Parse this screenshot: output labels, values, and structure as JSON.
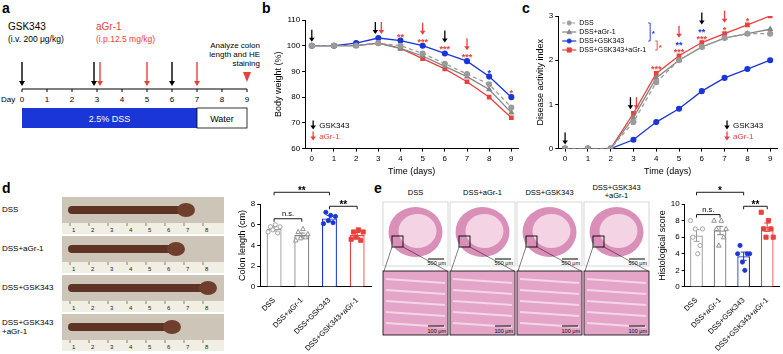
{
  "figure": {
    "panel_labels": [
      "a",
      "b",
      "c",
      "d",
      "e"
    ],
    "schedule": {
      "axis_label": "Day",
      "days": [
        0,
        1,
        2,
        3,
        4,
        5,
        6,
        7,
        8,
        9
      ],
      "treatments": [
        {
          "name": "GSK343",
          "dose": "(i.v. 200 μg/kg)",
          "color": "#000000",
          "days": [
            0,
            3,
            6
          ]
        },
        {
          "name": "aGr-1",
          "dose": "(i.p.12.5 mg/kg)",
          "color": "#e8413c",
          "days": [
            3,
            5,
            7
          ]
        }
      ],
      "endpoint": {
        "text": "Analyze colon length and HE staining",
        "day": 9,
        "color": "#e8413c"
      },
      "phases": [
        {
          "label": "2.5% DSS",
          "start": 0,
          "end": 7,
          "color": "#1a36d6"
        },
        {
          "label": "Water",
          "start": 7,
          "end": 9,
          "color": "#ffffff"
        }
      ]
    },
    "colon_photos": {
      "rows": [
        "DSS",
        "DSS+aGr-1",
        "DSS+GSK343",
        "DSS+GSK343+aGr-1"
      ],
      "ruler": [
        1,
        2,
        3,
        4,
        5,
        6,
        7,
        8
      ]
    },
    "he_photos": {
      "columns": [
        "DSS",
        "DSS+aGr-1",
        "DSS+GSK343",
        "DSS+GSK343+aGr-1"
      ],
      "scale_bars": [
        "500 μm",
        "100 μm"
      ]
    }
  },
  "chart_data": [
    {
      "type": "line",
      "x_label": "Time (days)",
      "y_label": "Body weight (%)",
      "x": [
        0,
        1,
        2,
        3,
        4,
        5,
        6,
        7,
        8,
        9
      ],
      "xlim": [
        -0.3,
        9.3
      ],
      "xticks": [
        0,
        1,
        2,
        3,
        4,
        5,
        6,
        7,
        8,
        9
      ],
      "ylim": [
        60,
        110
      ],
      "yticks": [
        60,
        70,
        80,
        90,
        100,
        110
      ],
      "grid": false,
      "series": [
        {
          "name": "DSS",
          "color": "#9b9b9b",
          "marker": "circle",
          "line_style": "dashed",
          "values": [
            100,
            100,
            100,
            101,
            100,
            97,
            93,
            89,
            85,
            76
          ]
        },
        {
          "name": "DSS+aGr-1",
          "color": "#858585",
          "marker": "triangle",
          "line_style": "solid",
          "values": [
            100,
            100,
            100,
            101,
            99,
            96,
            92,
            88,
            83,
            74
          ]
        },
        {
          "name": "DSS+GSK343",
          "color": "#1a36d6",
          "marker": "circle",
          "line_style": "solid",
          "values": [
            100,
            100,
            101,
            103,
            102,
            100,
            97,
            94,
            88,
            80
          ]
        },
        {
          "name": "DSS+GSK343+aGr-1",
          "color": "#e8413c",
          "marker": "square",
          "line_style": "solid",
          "values": [
            100,
            100,
            100,
            101,
            99,
            95,
            91,
            86,
            80,
            72
          ]
        }
      ],
      "injections": [
        {
          "name": "GSK343",
          "color": "#000000",
          "x": [
            0,
            3,
            6
          ]
        },
        {
          "name": "aGr-1",
          "color": "#e8413c",
          "x": [
            3,
            5,
            7
          ]
        }
      ],
      "annotations": [
        {
          "x": 4,
          "text": "**",
          "color": "#e8413c"
        },
        {
          "x": 5,
          "text": "***",
          "color": "#e8413c"
        },
        {
          "x": 6,
          "text": "***",
          "color": "#e8413c"
        },
        {
          "x": 7,
          "text": "***",
          "color": "#e8413c"
        },
        {
          "x": 8,
          "text": "*",
          "color": "#1a36d6"
        },
        {
          "x": 9,
          "text": "*",
          "color": "#e8413c"
        }
      ]
    },
    {
      "type": "line",
      "x_label": "Time (days)",
      "y_label": "Disease activity index",
      "x": [
        0,
        1,
        2,
        3,
        4,
        5,
        6,
        7,
        8,
        9
      ],
      "xlim": [
        -0.3,
        9.3
      ],
      "xticks": [
        0,
        1,
        2,
        3,
        4,
        5,
        6,
        7,
        8,
        9
      ],
      "ylim": [
        0,
        3
      ],
      "yticks": [
        0,
        1,
        2,
        3
      ],
      "grid": false,
      "legend": "top left",
      "series": [
        {
          "name": "DSS",
          "color": "#9b9b9b",
          "marker": "circle",
          "line_style": "dashed",
          "values": [
            0,
            0,
            0,
            0.6,
            1.5,
            2.0,
            2.3,
            2.5,
            2.6,
            2.6
          ]
        },
        {
          "name": "DSS+aGr-1",
          "color": "#858585",
          "marker": "triangle",
          "line_style": "solid",
          "values": [
            0,
            0,
            0,
            0.7,
            1.6,
            2.0,
            2.3,
            2.5,
            2.6,
            2.7
          ]
        },
        {
          "name": "DSS+GSK343",
          "color": "#1a36d6",
          "marker": "circle",
          "line_style": "solid",
          "values": [
            0,
            0,
            0,
            0.2,
            0.6,
            0.9,
            1.3,
            1.6,
            1.8,
            2.0
          ]
        },
        {
          "name": "DSS+GSK343+aGr-1",
          "color": "#e8413c",
          "marker": "square",
          "line_style": "solid",
          "values": [
            0,
            0,
            0,
            0.8,
            1.7,
            2.1,
            2.4,
            2.6,
            2.8,
            3.0
          ]
        }
      ],
      "comparisons": [
        {
          "groups": [
            "DSS",
            "DSS+GSK343"
          ],
          "text": "*",
          "color": "#1a36d6"
        },
        {
          "groups": [
            "DSS+GSK343",
            "DSS+GSK343+aGr-1"
          ],
          "text": "*",
          "color": "#e8413c"
        }
      ],
      "injections": [
        {
          "name": "GSK343",
          "color": "#000000",
          "x": [
            0,
            3,
            6
          ]
        },
        {
          "name": "aGr-1",
          "color": "#e8413c",
          "x": [
            3,
            5,
            7
          ]
        }
      ],
      "annotations": [
        {
          "x": 4,
          "text": "***",
          "color": "#e8413c"
        },
        {
          "x": 5,
          "text": "***",
          "color": "#e8413c"
        },
        {
          "x": 5,
          "text": "**",
          "color": "#1a36d6"
        },
        {
          "x": 6,
          "text": "***",
          "color": "#e8413c"
        },
        {
          "x": 6,
          "text": "**",
          "color": "#1a36d6"
        },
        {
          "x": 7,
          "text": "*",
          "color": "#e8413c"
        },
        {
          "x": 8,
          "text": "*",
          "color": "#e8413c"
        }
      ]
    },
    {
      "type": "bar",
      "y_label": "Colon length (cm)",
      "categories": [
        "DSS",
        "DSS+aGr-1",
        "DSS+GSK343",
        "DSS+GSK343+aGr-1"
      ],
      "values": [
        5.6,
        5.0,
        6.6,
        5.0
      ],
      "errors": [
        0.2,
        0.2,
        0.3,
        0.25
      ],
      "points": [
        [
          5.3,
          5.8,
          5.5,
          6.0,
          5.2,
          5.8
        ],
        [
          4.5,
          5.3,
          4.7,
          5.6,
          4.8,
          5.1
        ],
        [
          6.1,
          7.2,
          6.4,
          6.9,
          6.2,
          6.8
        ],
        [
          4.6,
          5.3,
          4.8,
          5.5,
          4.5,
          5.3
        ]
      ],
      "colors": [
        "#9b9b9b",
        "#858585",
        "#1a36d6",
        "#e8413c"
      ],
      "ylim": [
        0,
        8
      ],
      "yticks": [
        0,
        2,
        4,
        6,
        8
      ],
      "grid": false,
      "comparisons": [
        {
          "groups": [
            "DSS",
            "DSS+aGr-1"
          ],
          "text": "n.s."
        },
        {
          "groups": [
            "DSS+GSK343",
            "DSS+GSK343+aGr-1"
          ],
          "text": "**"
        },
        {
          "groups": [
            "DSS",
            "DSS+GSK343"
          ],
          "text": "**"
        }
      ]
    },
    {
      "type": "bar",
      "y_label": "Histological score",
      "categories": [
        "DSS",
        "DSS+aGr-1",
        "DSS+GSK343",
        "DSS+GSK343+aGr-1"
      ],
      "values": [
        6.2,
        6.8,
        3.7,
        7.2
      ],
      "errors": [
        0.7,
        0.5,
        0.5,
        0.5
      ],
      "points": [
        [
          8,
          6,
          7,
          4,
          5,
          7
        ],
        [
          8,
          7,
          5,
          8,
          6,
          7
        ],
        [
          4,
          5,
          3,
          2,
          4,
          4
        ],
        [
          9,
          7,
          6,
          8,
          7,
          6
        ]
      ],
      "colors": [
        "#9b9b9b",
        "#858585",
        "#1a36d6",
        "#e8413c"
      ],
      "ylim": [
        0,
        10
      ],
      "yticks": [
        0,
        2,
        4,
        6,
        8,
        10
      ],
      "grid": false,
      "comparisons": [
        {
          "groups": [
            "DSS",
            "DSS+aGr-1"
          ],
          "text": "n.s."
        },
        {
          "groups": [
            "DSS+GSK343",
            "DSS+GSK343+aGr-1"
          ],
          "text": "**"
        },
        {
          "groups": [
            "DSS",
            "DSS+GSK343"
          ],
          "text": "*"
        }
      ]
    }
  ]
}
